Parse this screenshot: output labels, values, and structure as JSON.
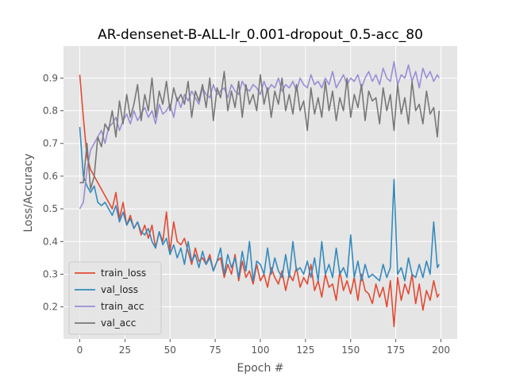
{
  "chart_data": {
    "type": "line",
    "title": "AR-densenet-B-ALL-lr_0.001-dropout_0.5-acc_80",
    "xlabel": "Epoch #",
    "ylabel": "Loss/Accuracy",
    "xlim": [
      -9,
      209
    ],
    "ylim": [
      0.102,
      0.998
    ],
    "xticks": [
      0,
      25,
      50,
      75,
      100,
      125,
      150,
      175,
      200
    ],
    "yticks": [
      0.2,
      0.3,
      0.4,
      0.5,
      0.6,
      0.7,
      0.8,
      0.9
    ],
    "grid": true,
    "legend_position": "lower-left",
    "colors": {
      "plot_bg": "#e5e5e5",
      "grid": "#ffffff",
      "train_loss": "#e24a33",
      "val_loss": "#348abd",
      "train_acc": "#988ed5",
      "val_acc": "#777777"
    },
    "series": [
      {
        "name": "train_loss",
        "x": [
          0,
          2,
          4,
          6,
          8,
          10,
          12,
          14,
          16,
          18,
          20,
          22,
          24,
          26,
          28,
          30,
          32,
          34,
          36,
          38,
          40,
          42,
          44,
          46,
          48,
          50,
          52,
          54,
          56,
          58,
          60,
          62,
          64,
          66,
          68,
          70,
          72,
          74,
          76,
          78,
          80,
          82,
          84,
          86,
          88,
          90,
          92,
          94,
          96,
          98,
          100,
          102,
          104,
          106,
          108,
          110,
          112,
          114,
          116,
          118,
          120,
          122,
          124,
          126,
          128,
          130,
          132,
          134,
          136,
          138,
          140,
          142,
          144,
          146,
          148,
          150,
          152,
          154,
          156,
          158,
          160,
          162,
          164,
          166,
          168,
          170,
          172,
          174,
          176,
          178,
          180,
          182,
          184,
          186,
          188,
          190,
          192,
          194,
          196,
          198,
          199
        ],
        "values": [
          0.91,
          0.78,
          0.66,
          0.62,
          0.6,
          0.58,
          0.56,
          0.54,
          0.52,
          0.5,
          0.55,
          0.47,
          0.52,
          0.45,
          0.48,
          0.44,
          0.46,
          0.42,
          0.45,
          0.41,
          0.45,
          0.38,
          0.43,
          0.4,
          0.49,
          0.37,
          0.46,
          0.4,
          0.39,
          0.41,
          0.37,
          0.33,
          0.38,
          0.34,
          0.35,
          0.33,
          0.36,
          0.31,
          0.34,
          0.35,
          0.29,
          0.33,
          0.3,
          0.36,
          0.28,
          0.34,
          0.29,
          0.31,
          0.27,
          0.33,
          0.28,
          0.3,
          0.26,
          0.32,
          0.29,
          0.27,
          0.31,
          0.25,
          0.3,
          0.28,
          0.32,
          0.26,
          0.29,
          0.27,
          0.33,
          0.25,
          0.28,
          0.23,
          0.3,
          0.26,
          0.27,
          0.22,
          0.31,
          0.25,
          0.28,
          0.24,
          0.29,
          0.22,
          0.3,
          0.25,
          0.24,
          0.21,
          0.27,
          0.23,
          0.26,
          0.2,
          0.28,
          0.14,
          0.29,
          0.22,
          0.27,
          0.24,
          0.3,
          0.21,
          0.27,
          0.19,
          0.25,
          0.22,
          0.28,
          0.23,
          0.24
        ]
      },
      {
        "name": "val_loss",
        "x": [
          0,
          2,
          4,
          6,
          8,
          10,
          12,
          14,
          16,
          18,
          20,
          22,
          24,
          26,
          28,
          30,
          32,
          34,
          36,
          38,
          40,
          42,
          44,
          46,
          48,
          50,
          52,
          54,
          56,
          58,
          60,
          62,
          64,
          66,
          68,
          70,
          72,
          74,
          76,
          78,
          80,
          82,
          84,
          86,
          88,
          90,
          92,
          94,
          96,
          98,
          100,
          102,
          104,
          106,
          108,
          110,
          112,
          114,
          116,
          118,
          120,
          122,
          124,
          126,
          128,
          130,
          132,
          134,
          136,
          138,
          140,
          142,
          144,
          146,
          148,
          150,
          152,
          154,
          156,
          158,
          160,
          162,
          164,
          166,
          168,
          170,
          172,
          174,
          176,
          178,
          180,
          182,
          184,
          186,
          188,
          190,
          192,
          194,
          196,
          198,
          199
        ],
        "values": [
          0.75,
          0.6,
          0.57,
          0.55,
          0.57,
          0.52,
          0.51,
          0.52,
          0.5,
          0.48,
          0.51,
          0.46,
          0.49,
          0.45,
          0.47,
          0.44,
          0.46,
          0.43,
          0.42,
          0.44,
          0.4,
          0.38,
          0.43,
          0.39,
          0.41,
          0.36,
          0.39,
          0.35,
          0.38,
          0.33,
          0.4,
          0.34,
          0.36,
          0.32,
          0.37,
          0.33,
          0.35,
          0.31,
          0.34,
          0.38,
          0.3,
          0.36,
          0.32,
          0.35,
          0.29,
          0.37,
          0.31,
          0.4,
          0.28,
          0.34,
          0.33,
          0.3,
          0.38,
          0.3,
          0.35,
          0.31,
          0.29,
          0.36,
          0.29,
          0.4,
          0.31,
          0.32,
          0.3,
          0.34,
          0.29,
          0.35,
          0.28,
          0.4,
          0.3,
          0.33,
          0.29,
          0.38,
          0.3,
          0.32,
          0.29,
          0.42,
          0.29,
          0.34,
          0.28,
          0.33,
          0.29,
          0.3,
          0.29,
          0.28,
          0.33,
          0.29,
          0.32,
          0.59,
          0.3,
          0.32,
          0.28,
          0.35,
          0.3,
          0.29,
          0.33,
          0.29,
          0.34,
          0.3,
          0.46,
          0.32,
          0.33
        ]
      },
      {
        "name": "train_acc",
        "x": [
          0,
          2,
          4,
          6,
          8,
          10,
          12,
          14,
          16,
          18,
          20,
          22,
          24,
          26,
          28,
          30,
          32,
          34,
          36,
          38,
          40,
          42,
          44,
          46,
          48,
          50,
          52,
          54,
          56,
          58,
          60,
          62,
          64,
          66,
          68,
          70,
          72,
          74,
          76,
          78,
          80,
          82,
          84,
          86,
          88,
          90,
          92,
          94,
          96,
          98,
          100,
          102,
          104,
          106,
          108,
          110,
          112,
          114,
          116,
          118,
          120,
          122,
          124,
          126,
          128,
          130,
          132,
          134,
          136,
          138,
          140,
          142,
          144,
          146,
          148,
          150,
          152,
          154,
          156,
          158,
          160,
          162,
          164,
          166,
          168,
          170,
          172,
          174,
          176,
          178,
          180,
          182,
          184,
          186,
          188,
          190,
          192,
          194,
          196,
          198,
          199
        ],
        "values": [
          0.5,
          0.52,
          0.62,
          0.68,
          0.7,
          0.72,
          0.74,
          0.7,
          0.75,
          0.76,
          0.78,
          0.74,
          0.77,
          0.79,
          0.76,
          0.8,
          0.77,
          0.79,
          0.81,
          0.78,
          0.8,
          0.76,
          0.82,
          0.79,
          0.8,
          0.82,
          0.78,
          0.84,
          0.81,
          0.85,
          0.83,
          0.86,
          0.84,
          0.82,
          0.87,
          0.85,
          0.84,
          0.88,
          0.85,
          0.86,
          0.87,
          0.84,
          0.88,
          0.86,
          0.85,
          0.89,
          0.87,
          0.86,
          0.88,
          0.87,
          0.85,
          0.89,
          0.86,
          0.88,
          0.87,
          0.9,
          0.86,
          0.88,
          0.87,
          0.89,
          0.86,
          0.9,
          0.88,
          0.87,
          0.91,
          0.88,
          0.89,
          0.87,
          0.9,
          0.88,
          0.92,
          0.87,
          0.89,
          0.91,
          0.88,
          0.9,
          0.89,
          0.91,
          0.87,
          0.9,
          0.92,
          0.89,
          0.91,
          0.88,
          0.93,
          0.9,
          0.89,
          0.95,
          0.88,
          0.91,
          0.9,
          0.94,
          0.89,
          0.92,
          0.87,
          0.93,
          0.9,
          0.92,
          0.89,
          0.91,
          0.9
        ]
      },
      {
        "name": "val_acc",
        "x": [
          0,
          2,
          4,
          6,
          8,
          10,
          12,
          14,
          16,
          18,
          20,
          22,
          24,
          26,
          28,
          30,
          32,
          34,
          36,
          38,
          40,
          42,
          44,
          46,
          48,
          50,
          52,
          54,
          56,
          58,
          60,
          62,
          64,
          66,
          68,
          70,
          72,
          74,
          76,
          78,
          80,
          82,
          84,
          86,
          88,
          90,
          92,
          94,
          96,
          98,
          100,
          102,
          104,
          106,
          108,
          110,
          112,
          114,
          116,
          118,
          120,
          122,
          124,
          126,
          128,
          130,
          132,
          134,
          136,
          138,
          140,
          142,
          144,
          146,
          148,
          150,
          152,
          154,
          156,
          158,
          160,
          162,
          164,
          166,
          168,
          170,
          172,
          174,
          176,
          178,
          180,
          182,
          184,
          186,
          188,
          190,
          192,
          194,
          196,
          198,
          199
        ],
        "values": [
          0.58,
          0.58,
          0.7,
          0.56,
          0.6,
          0.72,
          0.69,
          0.76,
          0.74,
          0.8,
          0.72,
          0.83,
          0.76,
          0.85,
          0.78,
          0.82,
          0.88,
          0.77,
          0.85,
          0.8,
          0.9,
          0.78,
          0.86,
          0.82,
          0.89,
          0.8,
          0.87,
          0.83,
          0.85,
          0.82,
          0.89,
          0.78,
          0.86,
          0.83,
          0.88,
          0.81,
          0.9,
          0.77,
          0.87,
          0.84,
          0.92,
          0.8,
          0.86,
          0.81,
          0.89,
          0.78,
          0.88,
          0.82,
          0.85,
          0.8,
          0.91,
          0.82,
          0.87,
          0.78,
          0.86,
          0.82,
          0.9,
          0.8,
          0.85,
          0.79,
          0.88,
          0.8,
          0.83,
          0.74,
          0.87,
          0.79,
          0.84,
          0.78,
          0.89,
          0.8,
          0.86,
          0.77,
          0.84,
          0.8,
          0.9,
          0.78,
          0.85,
          0.81,
          0.88,
          0.77,
          0.86,
          0.83,
          0.84,
          0.76,
          0.87,
          0.8,
          0.85,
          0.74,
          0.88,
          0.79,
          0.84,
          0.76,
          0.89,
          0.8,
          0.82,
          0.76,
          0.86,
          0.79,
          0.81,
          0.72,
          0.8
        ]
      }
    ]
  }
}
